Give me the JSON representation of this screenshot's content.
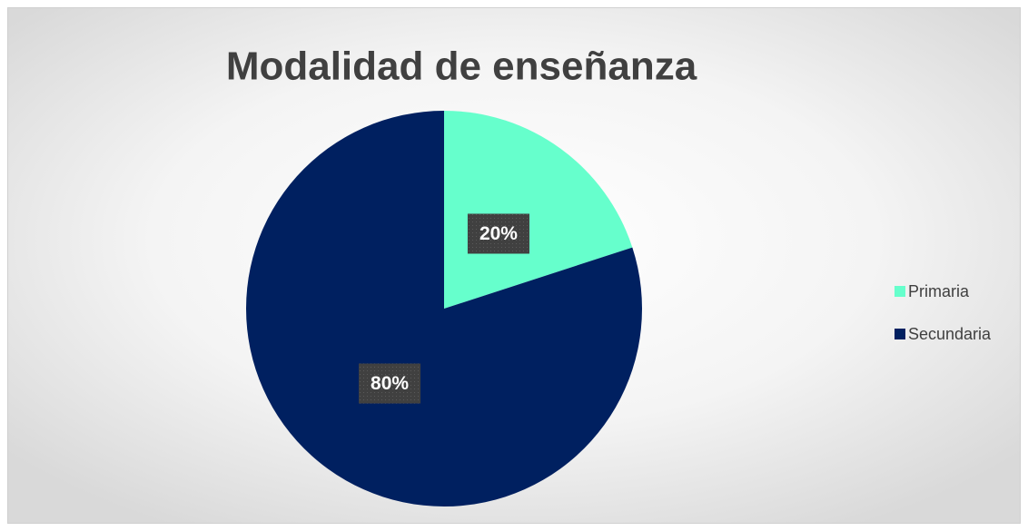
{
  "chart_data": {
    "type": "pie",
    "title": "Modalidad de enseñanza",
    "categories": [
      "Primaria",
      "Secundaria"
    ],
    "values": [
      20,
      80
    ],
    "value_labels": [
      "20%",
      "80%"
    ],
    "colors": [
      "#66ffcc",
      "#002060"
    ],
    "legend": "right"
  }
}
